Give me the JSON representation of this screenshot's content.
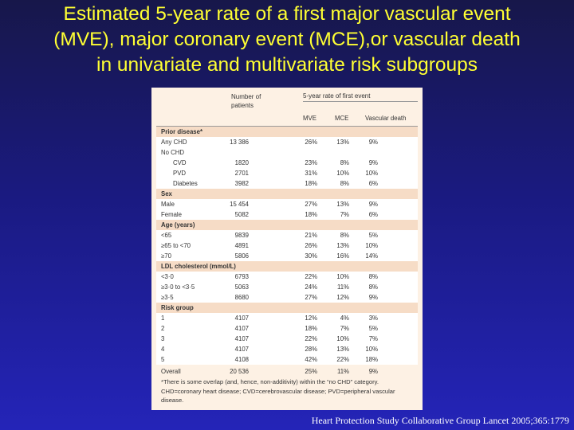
{
  "title_lines": [
    "Estimated 5-year rate of a first major vascular event",
    "(MVE), major coronary event (MCE),or vascular death",
    "in univariate and multivariate risk subgroups"
  ],
  "table": {
    "col_patients": "Number of patients",
    "col_group": "5-year rate of first event",
    "col_mve": "MVE",
    "col_mce": "MCE",
    "col_vd": "Vascular death",
    "rows": [
      {
        "type": "header",
        "label": "Prior disease*",
        "n": "",
        "mve": "",
        "mce": "",
        "vd": ""
      },
      {
        "type": "data",
        "label": "Any CHD",
        "n": "13 386",
        "mve": "26%",
        "mce": "13%",
        "vd": "9%"
      },
      {
        "type": "data",
        "label": "No CHD",
        "n": "",
        "mve": "",
        "mce": "",
        "vd": ""
      },
      {
        "type": "indent",
        "label": "CVD",
        "n": "1820",
        "mve": "23%",
        "mce": "8%",
        "vd": "9%"
      },
      {
        "type": "indent",
        "label": "PVD",
        "n": "2701",
        "mve": "31%",
        "mce": "10%",
        "vd": "10%"
      },
      {
        "type": "indent",
        "label": "Diabetes",
        "n": "3982",
        "mve": "18%",
        "mce": "8%",
        "vd": "6%"
      },
      {
        "type": "header",
        "label": "Sex",
        "n": "",
        "mve": "",
        "mce": "",
        "vd": ""
      },
      {
        "type": "data",
        "label": "Male",
        "n": "15 454",
        "mve": "27%",
        "mce": "13%",
        "vd": "9%"
      },
      {
        "type": "data",
        "label": "Female",
        "n": "5082",
        "mve": "18%",
        "mce": "7%",
        "vd": "6%"
      },
      {
        "type": "header",
        "label": "Age (years)",
        "n": "",
        "mve": "",
        "mce": "",
        "vd": ""
      },
      {
        "type": "data",
        "label": "<65",
        "n": "9839",
        "mve": "21%",
        "mce": "8%",
        "vd": "5%"
      },
      {
        "type": "data",
        "label": "≥65 to <70",
        "n": "4891",
        "mve": "26%",
        "mce": "13%",
        "vd": "10%"
      },
      {
        "type": "data",
        "label": "≥70",
        "n": "5806",
        "mve": "30%",
        "mce": "16%",
        "vd": "14%"
      },
      {
        "type": "header",
        "label": "LDL cholesterol (mmol/L)",
        "n": "",
        "mve": "",
        "mce": "",
        "vd": ""
      },
      {
        "type": "data",
        "label": "<3·0",
        "n": "6793",
        "mve": "22%",
        "mce": "10%",
        "vd": "8%"
      },
      {
        "type": "data",
        "label": "≥3·0 to <3·5",
        "n": "5063",
        "mve": "24%",
        "mce": "11%",
        "vd": "8%"
      },
      {
        "type": "data",
        "label": "≥3·5",
        "n": "8680",
        "mve": "27%",
        "mce": "12%",
        "vd": "9%"
      },
      {
        "type": "header",
        "label": "Risk group",
        "n": "",
        "mve": "",
        "mce": "",
        "vd": ""
      },
      {
        "type": "data",
        "label": "1",
        "n": "4107",
        "mve": "12%",
        "mce": "4%",
        "vd": "3%"
      },
      {
        "type": "data",
        "label": "2",
        "n": "4107",
        "mve": "18%",
        "mce": "7%",
        "vd": "5%"
      },
      {
        "type": "data",
        "label": "3",
        "n": "4107",
        "mve": "22%",
        "mce": "10%",
        "vd": "7%"
      },
      {
        "type": "data",
        "label": "4",
        "n": "4107",
        "mve": "28%",
        "mce": "13%",
        "vd": "10%"
      },
      {
        "type": "data",
        "label": "5",
        "n": "4108",
        "mve": "42%",
        "mce": "22%",
        "vd": "18%"
      },
      {
        "type": "overall",
        "label": "Overall",
        "n": "20 536",
        "mve": "25%",
        "mce": "11%",
        "vd": "9%"
      }
    ],
    "footnote": "*There is some overlap (and, hence, non-additivity) within the “no CHD” category. CHD=coronary heart disease; CVD=cerebrovascular disease; PVD=peripheral vascular disease."
  },
  "citation": "Heart Protection Study Collaborative Group Lancet 2005;365:1779",
  "colors": {
    "title": "#ffff33",
    "background_top": "#17174a",
    "background_bottom": "#2424b8",
    "table_bg": "#fdf1e4",
    "row_shade": "#f6dcc6"
  }
}
